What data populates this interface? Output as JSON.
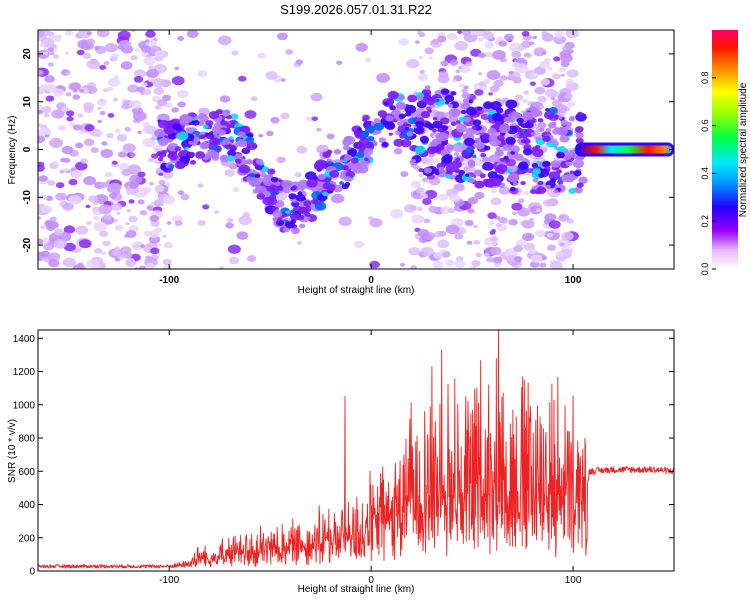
{
  "title": "S199.2026.057.01.31.R22",
  "colors": {
    "snr_line": "#ee2222",
    "axis": "#000000",
    "background": "#ffffff"
  },
  "colormap_name": "rainbow",
  "chart_data": [
    {
      "type": "heatmap",
      "name": "spectrogram",
      "xlabel": "Height of straight line (km)",
      "ylabel": "Frequency (Hz)",
      "xlim": [
        -165,
        150
      ],
      "ylim": [
        -25,
        25
      ],
      "xticks": [
        -100,
        0,
        100
      ],
      "yticks": [
        -20,
        -10,
        0,
        10,
        20
      ],
      "colorbar": {
        "label": "Normalized spectral amplitude",
        "range": [
          0,
          1
        ],
        "ticks": [
          0.0,
          0.2,
          0.4,
          0.6,
          0.8
        ]
      },
      "ridge": {
        "description_points_x": [
          -100,
          -80,
          -70,
          -60,
          -45,
          -35,
          -20,
          -10,
          0,
          10,
          20,
          40,
          60,
          80,
          100,
          105,
          150
        ],
        "description_points_y": [
          1,
          3,
          3,
          -2,
          -12,
          -12,
          -5,
          -2,
          3,
          7,
          5,
          3,
          1,
          0,
          0,
          -0.5,
          0
        ]
      },
      "tone": {
        "x_start": 102,
        "x_end": 148,
        "frequency": 0
      }
    },
    {
      "type": "line",
      "name": "snr",
      "xlabel": "Height of straight line (km)",
      "ylabel": "SNR (10 * v/v)",
      "xlim": [
        -165,
        150
      ],
      "ylim": [
        0,
        1450
      ],
      "xticks": [
        -100,
        0,
        100
      ],
      "yticks": [
        0,
        200,
        400,
        600,
        800,
        1000,
        1200,
        1400
      ],
      "envelope": {
        "x": [
          -165,
          -100,
          -90,
          -85,
          -80,
          -70,
          -60,
          -50,
          -40,
          -30,
          -20,
          -10,
          0,
          10,
          18,
          25,
          30,
          40,
          50,
          60,
          70,
          80,
          90,
          100,
          106,
          108,
          120,
          140,
          150
        ],
        "base": [
          30,
          30,
          35,
          60,
          80,
          100,
          110,
          130,
          150,
          170,
          180,
          200,
          250,
          300,
          350,
          400,
          420,
          420,
          420,
          430,
          430,
          420,
          420,
          400,
          380,
          600,
          610,
          610,
          600
        ],
        "peak": [
          60,
          60,
          110,
          200,
          180,
          230,
          260,
          300,
          320,
          380,
          420,
          500,
          600,
          800,
          1000,
          1200,
          1300,
          1250,
          1300,
          1450,
          1350,
          1300,
          1250,
          1100,
          900,
          650,
          650,
          650,
          640
        ]
      },
      "spikes": [
        {
          "x": -13,
          "y": 1050
        },
        {
          "x": 35,
          "y": 1330
        },
        {
          "x": 63,
          "y": 1450
        }
      ]
    }
  ]
}
